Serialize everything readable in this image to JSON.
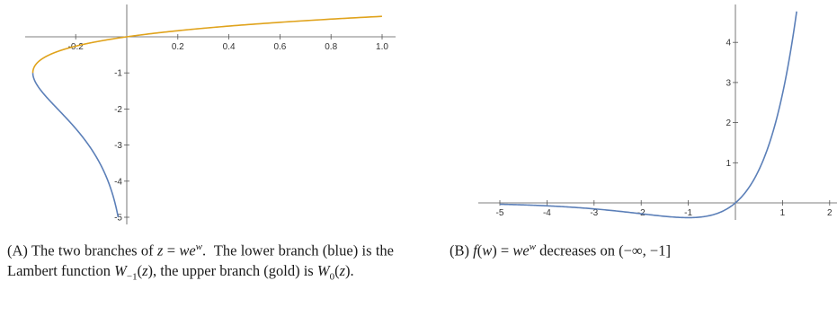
{
  "chart_data": [
    {
      "type": "line",
      "xlim": [
        -0.3679,
        1.0
      ],
      "ylim": [
        -5.0,
        0.5
      ],
      "x_ticks": [
        -0.2,
        0.2,
        0.4,
        0.6,
        0.8,
        1.0
      ],
      "x_tick_labels": [
        "-0.2",
        "0.2",
        "0.4",
        "0.6",
        "0.8",
        "1.0"
      ],
      "y_ticks": [
        -1,
        -2,
        -3,
        -4,
        -5
      ],
      "y_tick_labels": [
        "-1",
        "-2",
        "-3",
        "-4",
        "-5"
      ],
      "grid": false,
      "series": [
        {
          "color": "#5b7fb8",
          "w_range": [
            -5,
            -1
          ]
        },
        {
          "color": "#e0a31c",
          "w_range": [
            -1,
            0.567
          ]
        }
      ]
    },
    {
      "type": "line",
      "xlim": [
        -5,
        2
      ],
      "ylim": [
        -0.37,
        4.8
      ],
      "x_ticks": [
        -5,
        -4,
        -3,
        -2,
        -1,
        1,
        2
      ],
      "x_tick_labels": [
        "-5",
        "-4",
        "-3",
        "-2",
        "-1",
        "1",
        "2"
      ],
      "y_ticks": [
        1,
        2,
        3,
        4
      ],
      "y_tick_labels": [
        "1",
        "2",
        "3",
        "4"
      ],
      "grid": false,
      "series": [
        {
          "color": "#5b7fb8",
          "w_range": [
            -5,
            1.3
          ]
        }
      ]
    }
  ],
  "captions": {
    "a": {
      "tag": "(A)",
      "line1": "The two branches of z = we^w. The",
      "line2": "lower branch (blue) is the Lambert function",
      "line3": "W−1(z), the upper branch (gold) is W0(z)."
    },
    "b": {
      "tag": "(B)",
      "text": "f(w) = we^w decreases on (−∞, −1]"
    }
  }
}
